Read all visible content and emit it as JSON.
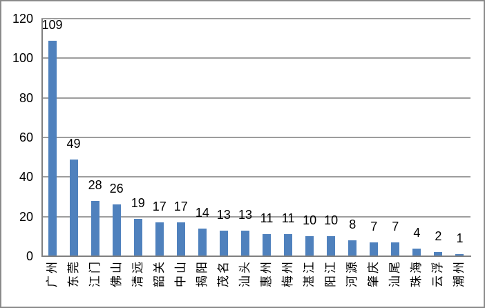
{
  "chart": {
    "background_color": "#ffffff",
    "border_color": "#8a8a8a",
    "bar_color": "#4f81bd",
    "gridline_color": "#9d9d9d",
    "axis_color": "#7f7f7f",
    "text_color": "#000000"
  },
  "chart_data": {
    "type": "bar",
    "title": "",
    "xlabel": "",
    "ylabel": "",
    "categories": [
      "广州",
      "东莞",
      "江门",
      "佛山",
      "清远",
      "韶关",
      "中山",
      "揭阳",
      "茂名",
      "汕头",
      "惠州",
      "梅州",
      "湛江",
      "阳江",
      "河源",
      "肇庆",
      "汕尾",
      "珠海",
      "云浮",
      "潮州"
    ],
    "values": [
      109,
      49,
      28,
      26,
      19,
      17,
      17,
      14,
      13,
      13,
      11,
      11,
      10,
      10,
      8,
      7,
      7,
      4,
      2,
      1
    ],
    "data_labels": [
      109,
      49,
      28,
      26,
      19,
      17,
      17,
      14,
      13,
      13,
      11,
      11,
      10,
      10,
      8,
      7,
      7,
      4,
      2,
      1
    ],
    "ylim": [
      0,
      120
    ],
    "yticks": [
      0,
      20,
      40,
      60,
      80,
      100,
      120
    ],
    "grid": true,
    "legend_position": "none",
    "category_label_rotation_degrees": -90
  }
}
